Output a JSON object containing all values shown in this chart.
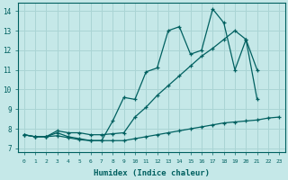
{
  "xlabel": "Humidex (Indice chaleur)",
  "xlim": [
    -0.5,
    23.5
  ],
  "ylim": [
    6.8,
    14.4
  ],
  "yticks": [
    7,
    8,
    9,
    10,
    11,
    12,
    13,
    14
  ],
  "xticks": [
    0,
    1,
    2,
    3,
    4,
    5,
    6,
    7,
    8,
    9,
    10,
    11,
    12,
    13,
    14,
    15,
    16,
    17,
    18,
    19,
    20,
    21,
    22,
    23
  ],
  "bg_color": "#c5e8e8",
  "grid_color": "#aad4d4",
  "line_color": "#006060",
  "lines": [
    {
      "x": [
        0,
        1,
        2,
        3,
        4,
        5,
        6,
        7,
        8,
        9,
        10,
        11,
        12,
        13,
        14,
        15,
        16,
        17,
        18,
        19,
        20,
        21
      ],
      "y": [
        7.7,
        7.6,
        7.6,
        7.8,
        7.6,
        7.5,
        7.4,
        7.4,
        8.4,
        9.6,
        9.5,
        10.9,
        11.1,
        13.0,
        13.2,
        11.8,
        12.0,
        14.1,
        13.4,
        11.0,
        12.55,
        9.5
      ]
    },
    {
      "x": [
        0,
        1,
        2,
        3,
        4,
        5,
        6,
        7,
        8,
        9,
        10,
        11,
        12,
        13,
        14,
        15,
        16,
        17,
        18,
        19,
        20,
        21
      ],
      "y": [
        7.7,
        7.6,
        7.6,
        7.9,
        7.8,
        7.8,
        7.7,
        7.7,
        7.75,
        7.8,
        8.6,
        9.1,
        9.7,
        10.2,
        10.7,
        11.2,
        11.7,
        12.1,
        12.55,
        13.0,
        12.55,
        11.0
      ]
    },
    {
      "x": [
        0,
        1,
        2,
        3,
        4,
        5,
        6,
        7,
        8,
        9,
        10,
        11,
        12,
        13,
        14,
        15,
        16,
        17,
        18,
        19,
        20,
        21,
        22,
        23
      ],
      "y": [
        7.7,
        7.6,
        7.6,
        7.65,
        7.55,
        7.45,
        7.4,
        7.4,
        7.4,
        7.4,
        7.5,
        7.6,
        7.7,
        7.8,
        7.9,
        8.0,
        8.1,
        8.2,
        8.3,
        8.35,
        8.4,
        8.45,
        8.55,
        8.6
      ]
    }
  ]
}
